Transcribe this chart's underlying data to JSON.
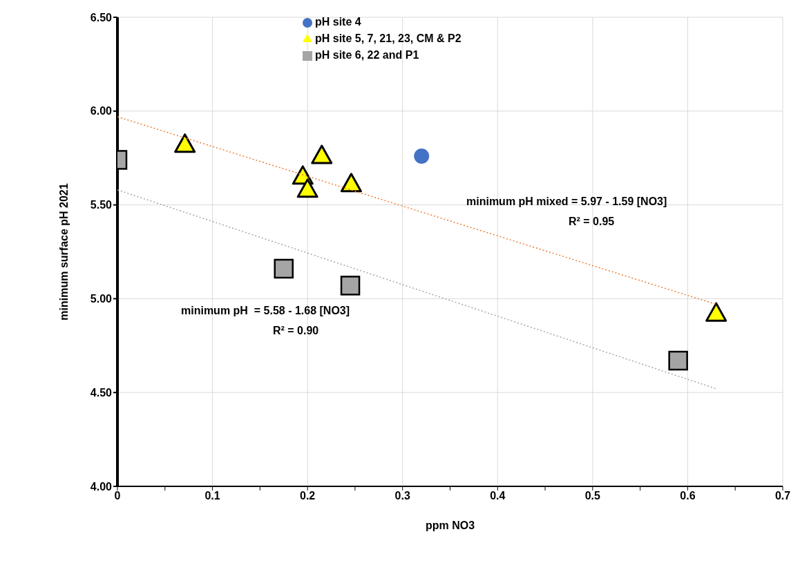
{
  "chart_data": {
    "type": "scatter",
    "xlabel": "ppm NO3",
    "ylabel": "minimum surface pH 2021",
    "xlim": [
      0,
      0.7
    ],
    "ylim": [
      4,
      6.5
    ],
    "xticks": [
      0,
      {
        "value": 0.05,
        "label": null
      },
      0.1,
      {
        "value": 0.15,
        "label": null
      },
      0.2,
      {
        "value": 0.25,
        "label": null
      },
      0.3,
      {
        "value": 0.35,
        "label": null
      },
      0.4,
      {
        "value": 0.45,
        "label": null
      },
      0.5,
      {
        "value": 0.55,
        "label": null
      },
      0.6,
      {
        "value": 0.65,
        "label": null
      },
      0.7
    ],
    "yticks": [
      {
        "value": 4,
        "label": "4.00"
      },
      {
        "value": 4.5,
        "label": "4.50"
      },
      {
        "value": 5,
        "label": "5.00"
      },
      {
        "value": 5.5,
        "label": "5.50"
      },
      {
        "value": 6,
        "label": "6.00"
      },
      {
        "value": 6.5,
        "label": "6.50"
      }
    ],
    "grid": true,
    "legend": "top",
    "series": [
      {
        "name": "pH site 4",
        "color": "#4472c4",
        "marker": "circle",
        "x": [
          0.32
        ],
        "values": [
          5.76
        ]
      },
      {
        "name": "pH site 5, 7, 21, 23, CM & P2",
        "color": "#ffff00",
        "marker": "triangle",
        "x": [
          0.071,
          0.195,
          0.2,
          0.215,
          0.246,
          0.63
        ],
        "values": [
          5.82,
          5.65,
          5.58,
          5.76,
          5.61,
          4.92
        ]
      },
      {
        "name": "pH site 6, 22 and P1",
        "color": "#a5a5a5",
        "marker": "square",
        "x": [
          0,
          0.175,
          0.245,
          0.59
        ],
        "values": [
          5.74,
          5.16,
          5.07,
          4.67
        ]
      },
      {
        "type": "line",
        "color": "#ed7d31",
        "line_style": "dotted",
        "marker": "none",
        "x": [
          0,
          0.63
        ],
        "values": [
          5.97,
          4.97
        ]
      },
      {
        "type": "line",
        "color": "#a5a5a5",
        "line_style": "dotted",
        "marker": "none",
        "x": [
          0,
          0.63
        ],
        "values": [
          5.58,
          4.52
        ]
      }
    ],
    "annotations": [
      "minimum pH mixed = 5.97 - 1.59 [NO3]",
      "R² = 0.95",
      "minimum pH  = 5.58 - 1.68 [NO3]",
      "R² = 0.90"
    ]
  }
}
